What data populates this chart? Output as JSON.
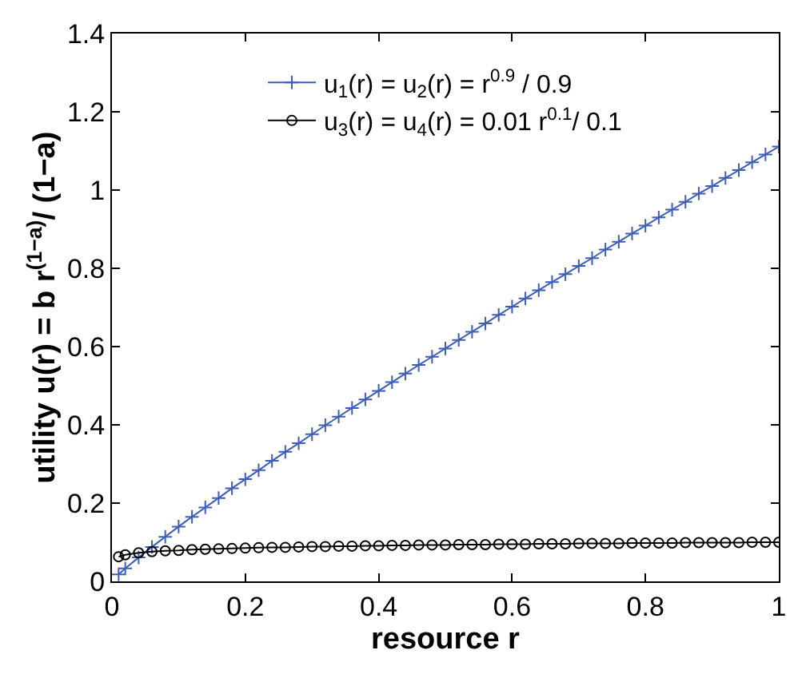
{
  "chart_data": {
    "type": "line",
    "xlabel": "resource r",
    "ylabel": "utility u(r) = b r$^{(1−a)}$/ (1−a)",
    "x": [
      0.01,
      0.02,
      0.04,
      0.06,
      0.08,
      0.1,
      0.12,
      0.14,
      0.16,
      0.18,
      0.2,
      0.22,
      0.24,
      0.26,
      0.28,
      0.3,
      0.32,
      0.34,
      0.36,
      0.38,
      0.4,
      0.42,
      0.44,
      0.46,
      0.48,
      0.5,
      0.52,
      0.54,
      0.56,
      0.58,
      0.6,
      0.62,
      0.64,
      0.66,
      0.68,
      0.7,
      0.72,
      0.74,
      0.76,
      0.78,
      0.8,
      0.82,
      0.84,
      0.86,
      0.88,
      0.9,
      0.92,
      0.94,
      0.96,
      0.98,
      1.0
    ],
    "series": [
      {
        "name": "u$_{1}$(r) = u$_{2}$(r) = r$^{0.9}$ / 0.9",
        "color": "#3f5fb5",
        "marker": "cross",
        "values": [
          0.018,
          0.033,
          0.061,
          0.088,
          0.114,
          0.14,
          0.165,
          0.189,
          0.213,
          0.238,
          0.261,
          0.284,
          0.308,
          0.331,
          0.353,
          0.376,
          0.399,
          0.421,
          0.443,
          0.465,
          0.487,
          0.509,
          0.531,
          0.553,
          0.574,
          0.595,
          0.617,
          0.638,
          0.659,
          0.681,
          0.702,
          0.723,
          0.744,
          0.765,
          0.785,
          0.806,
          0.826,
          0.848,
          0.868,
          0.889,
          0.909,
          0.93,
          0.95,
          0.97,
          0.991,
          1.01,
          1.031,
          1.051,
          1.071,
          1.091,
          1.111
        ]
      },
      {
        "name": "u$_{3}$(r) = u$_{4}$(r) = 0.01 r$^{0.1}$/ 0.1",
        "color": "#000000",
        "marker": "circle",
        "values": [
          0.063,
          0.068,
          0.073,
          0.076,
          0.078,
          0.079,
          0.081,
          0.082,
          0.083,
          0.084,
          0.085,
          0.086,
          0.087,
          0.087,
          0.088,
          0.089,
          0.089,
          0.09,
          0.09,
          0.091,
          0.091,
          0.092,
          0.092,
          0.093,
          0.093,
          0.093,
          0.094,
          0.094,
          0.094,
          0.095,
          0.095,
          0.095,
          0.096,
          0.096,
          0.096,
          0.097,
          0.097,
          0.097,
          0.097,
          0.098,
          0.098,
          0.098,
          0.098,
          0.099,
          0.099,
          0.099,
          0.099,
          0.099,
          0.1,
          0.1,
          0.1
        ]
      }
    ],
    "xlim": [
      0,
      1
    ],
    "xticks": [
      0,
      0.2,
      0.4,
      0.6,
      0.8,
      1
    ],
    "ylim": [
      0,
      1.4
    ],
    "yticks": [
      0,
      0.2,
      0.4,
      0.6,
      0.8,
      1,
      1.2,
      1.4
    ],
    "legend": "top",
    "line_style": "solid"
  }
}
